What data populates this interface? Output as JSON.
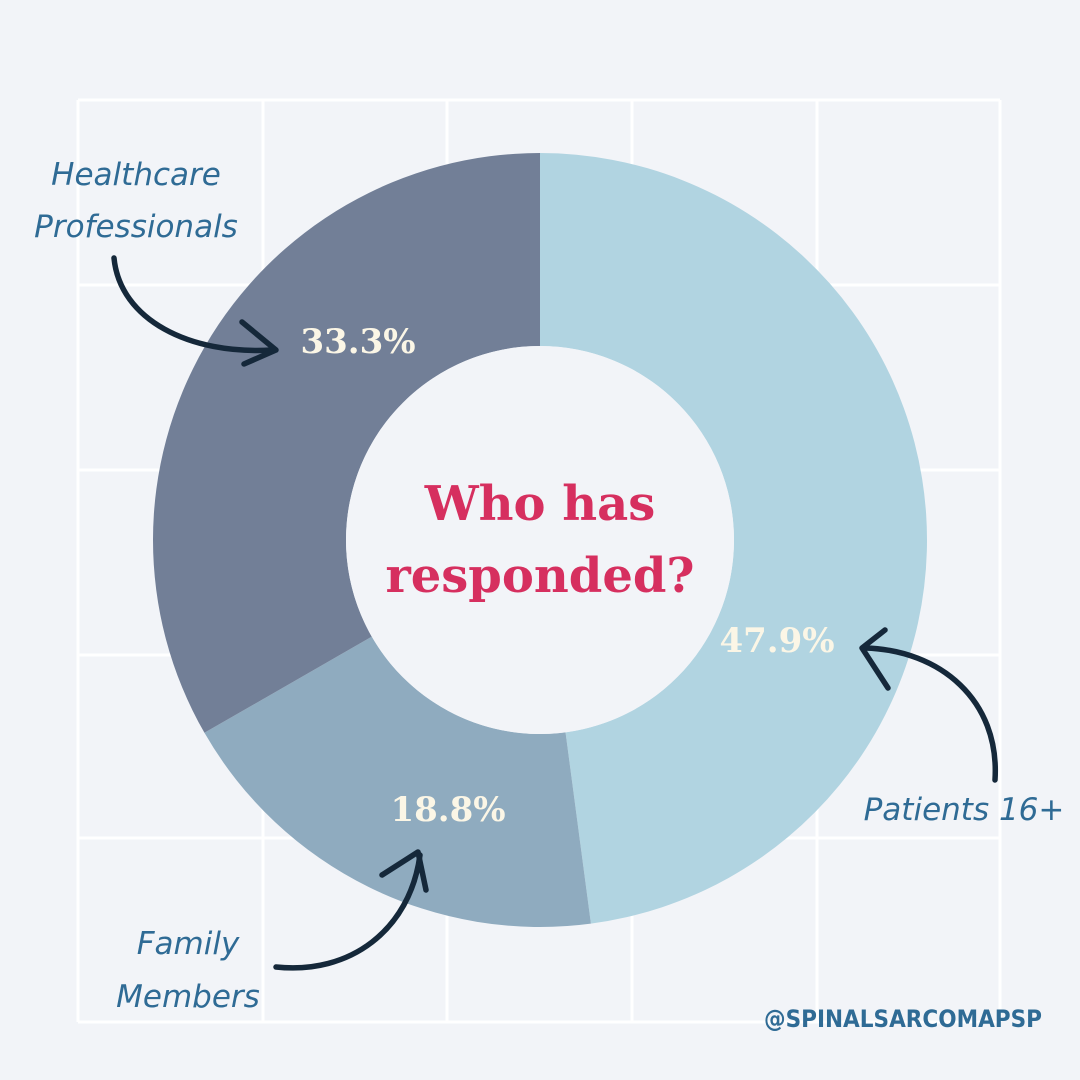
{
  "chart_data": {
    "type": "pie",
    "style": "donut",
    "title": "Who has responded?",
    "slices": [
      {
        "label": "Patients 16+",
        "value": 47.9,
        "display": "47.9%",
        "color": "#b1d4e1"
      },
      {
        "label": "Family Members",
        "value": 18.8,
        "display": "18.8%",
        "color": "#8fabbf"
      },
      {
        "label": "Healthcare Professionals",
        "value": 33.3,
        "display": "33.3%",
        "color": "#727f97"
      }
    ]
  },
  "text": {
    "title_line1": "Who has",
    "title_line2": "responded?",
    "hcp_line1": "Healthcare",
    "hcp_line2": "Professionals",
    "family_line1": "Family",
    "family_line2": "Members",
    "patients": "Patients 16+",
    "handle": "@SPINALSARCOMAPSP"
  },
  "colors": {
    "background": "#f2f4f8",
    "title": "#d62f5f",
    "percent_label": "#fbf6e6",
    "callout_text": "#2f6b95",
    "arrow": "#15283a"
  }
}
